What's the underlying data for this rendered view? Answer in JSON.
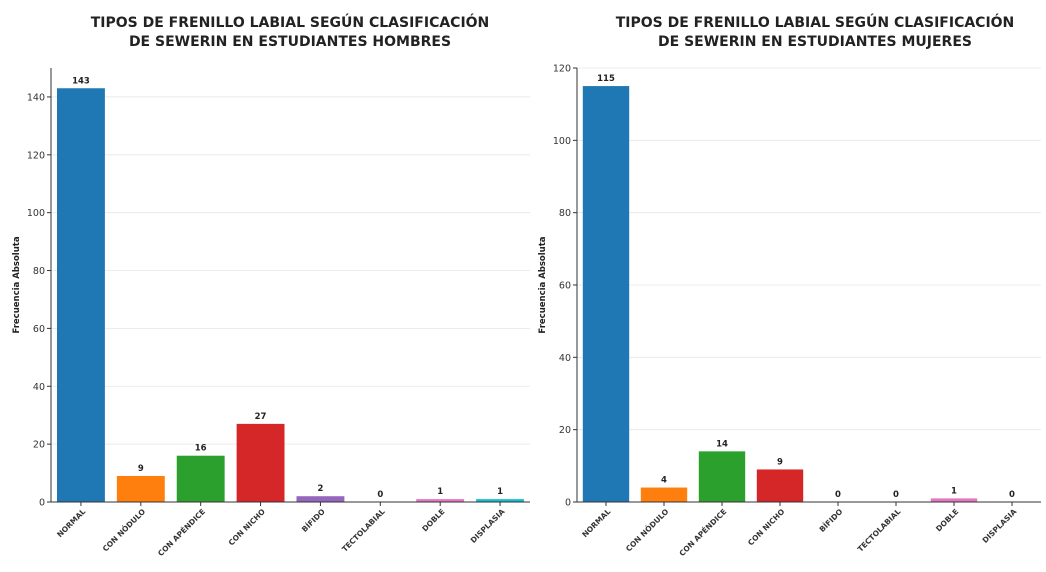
{
  "chart_data": [
    {
      "type": "bar",
      "title_lines": [
        "TIPOS DE FRENILLO LABIAL SEGÚN CLASIFICACIÓN",
        "DE SEWERIN EN ESTUDIANTES HOMBRES"
      ],
      "ylabel": "Frecuencia Absoluta",
      "xlabel": "",
      "categories": [
        "NORMAL",
        "CON NÓDULO",
        "CON APÉNDICE",
        "CON NICHO",
        "BÍFIDO",
        "TECTOLABIAL",
        "DOBLE",
        "DISPLASIA"
      ],
      "values": [
        143,
        9,
        16,
        27,
        2,
        0,
        1,
        1
      ],
      "value_labels": [
        "143",
        "9",
        "16",
        "27",
        "2",
        "0",
        "1",
        "1"
      ],
      "ylim": [
        0,
        150
      ],
      "yticks": [
        0,
        20,
        40,
        60,
        80,
        100,
        120,
        140
      ],
      "ytick_labels": [
        "0",
        "20",
        "40",
        "60",
        "80",
        "100",
        "120",
        "140"
      ],
      "colors": [
        "#1f77b4",
        "#ff7f0e",
        "#2ca02c",
        "#d62728",
        "#9467bd",
        "#8c564b",
        "#e377c2",
        "#17becf"
      ],
      "grid": true
    },
    {
      "type": "bar",
      "title_lines": [
        "TIPOS DE FRENILLO LABIAL SEGÚN CLASIFICACIÓN",
        "DE SEWERIN EN ESTUDIANTES MUJERES"
      ],
      "ylabel": "Frecuencia Absoluta",
      "xlabel": "",
      "categories": [
        "NORMAL",
        "CON NÓDULO",
        "CON APÉNDICE",
        "CON NICHO",
        "BÍFIDO",
        "TECTOLABIAL",
        "DOBLE",
        "DISPLASIA"
      ],
      "values": [
        115,
        4,
        14,
        9,
        0,
        0,
        1,
        0
      ],
      "value_labels": [
        "115",
        "4",
        "14",
        "9",
        "0",
        "0",
        "1",
        "0"
      ],
      "ylim": [
        0,
        120
      ],
      "yticks": [
        0,
        20,
        40,
        60,
        80,
        100,
        120
      ],
      "ytick_labels": [
        "0",
        "20",
        "40",
        "60",
        "80",
        "100",
        "120"
      ],
      "colors": [
        "#1f77b4",
        "#ff7f0e",
        "#2ca02c",
        "#d62728",
        "#9467bd",
        "#8c564b",
        "#e377c2",
        "#17becf"
      ],
      "grid": true
    }
  ]
}
